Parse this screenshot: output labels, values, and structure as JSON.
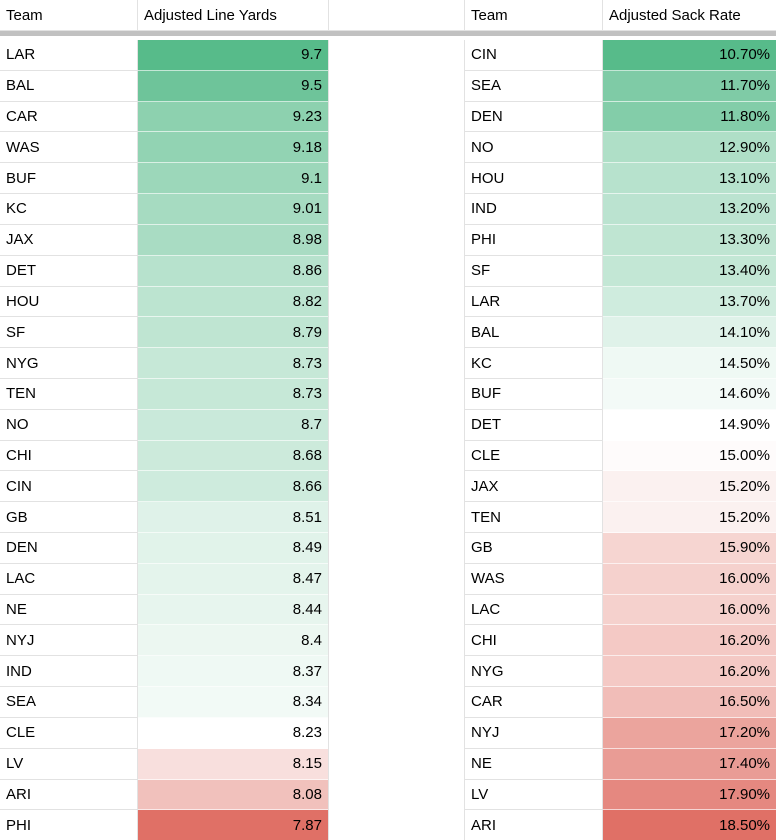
{
  "left_table": {
    "headers": [
      "Team",
      "Adjusted Line Yards"
    ],
    "rows": [
      {
        "team": "LAR",
        "value": "9.7",
        "color": "#57bb8a"
      },
      {
        "team": "BAL",
        "value": "9.5",
        "color": "#6ec49a"
      },
      {
        "team": "CAR",
        "value": "9.23",
        "color": "#8dd1af"
      },
      {
        "team": "WAS",
        "value": "9.18",
        "color": "#92d3b3"
      },
      {
        "team": "BUF",
        "value": "9.1",
        "color": "#9cd7ba"
      },
      {
        "team": "KC",
        "value": "9.01",
        "color": "#a6dbc1"
      },
      {
        "team": "JAX",
        "value": "8.98",
        "color": "#a9dcc3"
      },
      {
        "team": "DET",
        "value": "8.86",
        "color": "#b7e2cd"
      },
      {
        "team": "HOU",
        "value": "8.82",
        "color": "#bce4d0"
      },
      {
        "team": "SF",
        "value": "8.79",
        "color": "#bfe5d2"
      },
      {
        "team": "NYG",
        "value": "8.73",
        "color": "#c6e8d7"
      },
      {
        "team": "TEN",
        "value": "8.73",
        "color": "#c6e8d7"
      },
      {
        "team": "NO",
        "value": "8.7",
        "color": "#c9e9da"
      },
      {
        "team": "CHI",
        "value": "8.68",
        "color": "#cceadb"
      },
      {
        "team": "CIN",
        "value": "8.66",
        "color": "#ceebdd"
      },
      {
        "team": "GB",
        "value": "8.51",
        "color": "#dff2e9"
      },
      {
        "team": "DEN",
        "value": "8.49",
        "color": "#e1f3ea"
      },
      {
        "team": "LAC",
        "value": "8.47",
        "color": "#e4f4ec"
      },
      {
        "team": "NE",
        "value": "8.44",
        "color": "#e7f5ee"
      },
      {
        "team": "NYJ",
        "value": "8.4",
        "color": "#ecf7f1"
      },
      {
        "team": "IND",
        "value": "8.37",
        "color": "#eff9f4"
      },
      {
        "team": "SEA",
        "value": "8.34",
        "color": "#f2faf6"
      },
      {
        "team": "CLE",
        "value": "8.23",
        "color": "#ffffff"
      },
      {
        "team": "LV",
        "value": "8.15",
        "color": "#f8dfdd"
      },
      {
        "team": "ARI",
        "value": "8.08",
        "color": "#f1c1bc"
      },
      {
        "team": "PHI",
        "value": "7.87",
        "color": "#e07066"
      }
    ]
  },
  "right_table": {
    "headers": [
      "Team",
      "Adjusted Sack Rate"
    ],
    "rows": [
      {
        "team": "CIN",
        "value": "10.70%",
        "color": "#57bb8a"
      },
      {
        "team": "SEA",
        "value": "11.70%",
        "color": "#7fcba6"
      },
      {
        "team": "DEN",
        "value": "11.80%",
        "color": "#83cda9"
      },
      {
        "team": "NO",
        "value": "12.90%",
        "color": "#afdfc7"
      },
      {
        "team": "HOU",
        "value": "13.10%",
        "color": "#b7e2cd"
      },
      {
        "team": "IND",
        "value": "13.20%",
        "color": "#bbe3d0"
      },
      {
        "team": "PHI",
        "value": "13.30%",
        "color": "#bfe5d2"
      },
      {
        "team": "SF",
        "value": "13.40%",
        "color": "#c3e7d5"
      },
      {
        "team": "LAR",
        "value": "13.70%",
        "color": "#cfecde"
      },
      {
        "team": "BAL",
        "value": "14.10%",
        "color": "#dff2e9"
      },
      {
        "team": "KC",
        "value": "14.50%",
        "color": "#eff9f4"
      },
      {
        "team": "BUF",
        "value": "14.60%",
        "color": "#f3faf7"
      },
      {
        "team": "DET",
        "value": "14.90%",
        "color": "#ffffff"
      },
      {
        "team": "CLE",
        "value": "15.00%",
        "color": "#fefbfb"
      },
      {
        "team": "JAX",
        "value": "15.20%",
        "color": "#fbf1f0"
      },
      {
        "team": "TEN",
        "value": "15.20%",
        "color": "#fbf1f0"
      },
      {
        "team": "GB",
        "value": "15.90%",
        "color": "#f6d5d1"
      },
      {
        "team": "WAS",
        "value": "16.00%",
        "color": "#f5d1cd"
      },
      {
        "team": "LAC",
        "value": "16.00%",
        "color": "#f5d1cd"
      },
      {
        "team": "CHI",
        "value": "16.20%",
        "color": "#f4c9c5"
      },
      {
        "team": "NYG",
        "value": "16.20%",
        "color": "#f4c9c5"
      },
      {
        "team": "CAR",
        "value": "16.50%",
        "color": "#f1bdb8"
      },
      {
        "team": "NYJ",
        "value": "17.20%",
        "color": "#eba49d"
      },
      {
        "team": "NE",
        "value": "17.40%",
        "color": "#e99c95"
      },
      {
        "team": "LV",
        "value": "17.90%",
        "color": "#e58880"
      },
      {
        "team": "ARI",
        "value": "18.50%",
        "color": "#e07066"
      }
    ]
  },
  "colors": {
    "scale_max_green": "#57bb8a",
    "scale_min_red": "#e07066",
    "gridline": "#e2e2e2",
    "freeze_bar": "#c1c1c1",
    "cell_text": "#000000"
  }
}
